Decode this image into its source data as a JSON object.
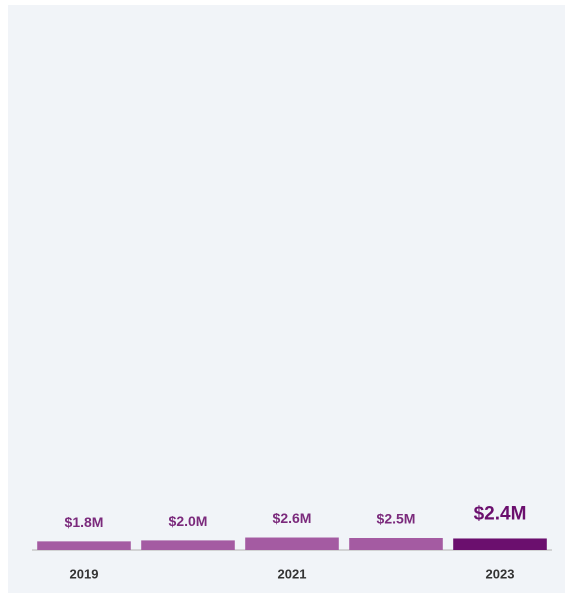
{
  "chart_data": {
    "type": "bar",
    "categories": [
      "2019",
      null,
      "2021",
      null,
      "2023"
    ],
    "values": [
      1.8,
      2.0,
      2.6,
      2.5,
      2.4
    ],
    "value_labels": [
      "$1.8M",
      "$2.0M",
      "$2.6M",
      "$2.5M",
      "$2.4M"
    ],
    "colors": [
      "#a45ba2",
      "#a45ba2",
      "#a45ba2",
      "#a45ba2",
      "#6b0f6e"
    ],
    "ylim": [
      0,
      100
    ]
  }
}
